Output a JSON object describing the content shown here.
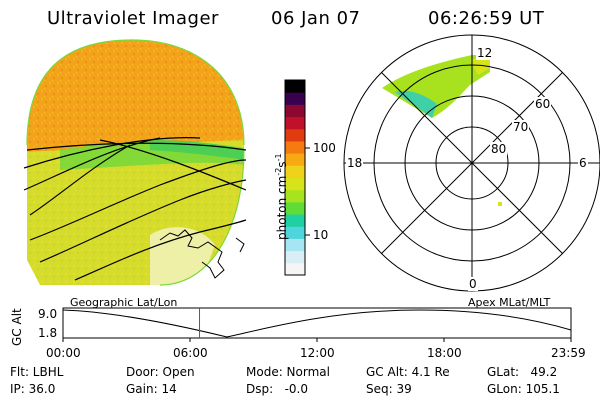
{
  "header": {
    "title": "Ultraviolet Imager",
    "date": "06 Jan 07",
    "time": "06:26:59 UT"
  },
  "colorbar": {
    "label": "photon cm",
    "label_sup1": "-2",
    "label_mid": "s",
    "label_sup2": "-1",
    "tick_high": "100",
    "tick_low": "10",
    "colors": [
      "#f5f5f5",
      "#d9eef5",
      "#a6e6f2",
      "#4fd6dc",
      "#1fd0a0",
      "#5fdc38",
      "#a8e41e",
      "#d8e41a",
      "#f0d21a",
      "#f7aa12",
      "#f57a10",
      "#e03c10",
      "#c0102a",
      "#8c0830",
      "#3a0050",
      "#000000"
    ]
  },
  "left_panel": {
    "description_colors": {
      "upper": "#f2a01c",
      "lower": "#d4dc2a",
      "band": "#7ad838"
    }
  },
  "polar_plot": {
    "label_top": "12",
    "label_bottom": "0",
    "label_left": "18",
    "label_right": "6",
    "ring_labels": [
      "60",
      "70",
      "80"
    ]
  },
  "timeline": {
    "y_axis_title": "GC Alt",
    "y_max": "9.0",
    "y_min": "1.8",
    "left_title": "Geographic Lat/Lon",
    "right_title": "Apex MLat/MLT",
    "ticks": [
      "00:00",
      "06:00",
      "12:00",
      "18:00",
      "23:59"
    ],
    "current_marker_hour": 6.45
  },
  "status": {
    "flt": "Flt: LBHL",
    "ip": "IP: 36.0",
    "door": "Door: Open",
    "gain": "Gain: 14",
    "mode": "Mode: Normal",
    "dsp": "Dsp:   -0.0",
    "gcalt": "GC Alt: 4.1 Re",
    "seq": "Seq: 39",
    "glat": "GLat:   49.2",
    "glon": "GLon: 105.1"
  }
}
